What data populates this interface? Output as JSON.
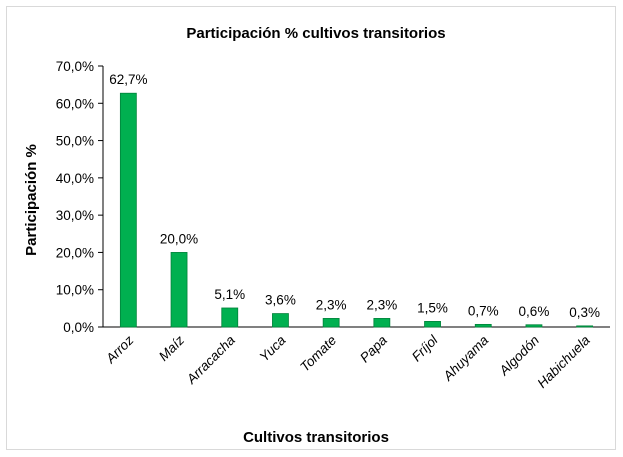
{
  "chart_data": {
    "type": "bar",
    "title": "Participación % cultivos transitorios",
    "xlabel": "Cultivos transitorios",
    "ylabel": "Participación %",
    "categories": [
      "Arroz",
      "Maíz",
      "Arracacha",
      "Yuca",
      "Tomate",
      "Papa",
      "Fríjol",
      "Ahuyama",
      "Algodón",
      "Habichuela"
    ],
    "values": [
      62.7,
      20.0,
      5.1,
      3.6,
      2.3,
      2.3,
      1.5,
      0.7,
      0.6,
      0.3
    ],
    "data_labels": [
      "62,7%",
      "20,0%",
      "5,1%",
      "3,6%",
      "2,3%",
      "2,3%",
      "1,5%",
      "0,7%",
      "0,6%",
      "0,3%"
    ],
    "yticks": [
      "0,0%",
      "10,0%",
      "20,0%",
      "30,0%",
      "40,0%",
      "50,0%",
      "60,0%",
      "70,0%"
    ],
    "ylim": [
      0,
      70
    ],
    "grid": false,
    "legend": "none",
    "colors": {
      "bar_fill": "#00b050",
      "bar_stroke": "#00823a",
      "axis": "#000000"
    }
  }
}
